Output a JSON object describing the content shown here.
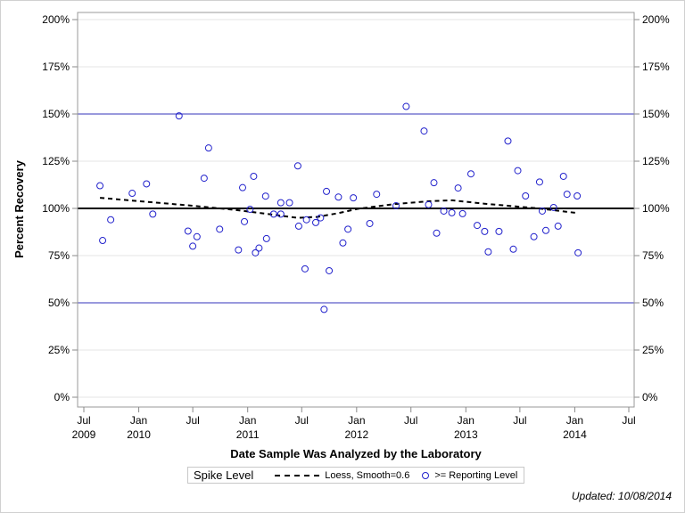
{
  "chart_data": {
    "type": "scatter",
    "xlabel": "Date Sample Was Analyzed by the Laboratory",
    "ylabel": "Percent Recovery",
    "xlim": [
      "2009-06-01",
      "2014-08-01"
    ],
    "ylim": [
      0,
      200
    ],
    "grid": true,
    "x_ticks": [
      {
        "date": "2009-07-01",
        "label": "Jul",
        "year": "2009"
      },
      {
        "date": "2010-01-01",
        "label": "Jan",
        "year": "2010"
      },
      {
        "date": "2010-07-01",
        "label": "Jul",
        "year": ""
      },
      {
        "date": "2011-01-01",
        "label": "Jan",
        "year": "2011"
      },
      {
        "date": "2011-07-01",
        "label": "Jul",
        "year": ""
      },
      {
        "date": "2012-01-01",
        "label": "Jan",
        "year": "2012"
      },
      {
        "date": "2012-07-01",
        "label": "Jul",
        "year": ""
      },
      {
        "date": "2013-01-01",
        "label": "Jan",
        "year": "2013"
      },
      {
        "date": "2013-07-01",
        "label": "Jul",
        "year": ""
      },
      {
        "date": "2014-01-01",
        "label": "Jan",
        "year": "2014"
      },
      {
        "date": "2014-07-01",
        "label": "Jul",
        "year": ""
      }
    ],
    "y_ticks": [
      {
        "value": 0,
        "label": "0%"
      },
      {
        "value": 25,
        "label": "25%"
      },
      {
        "value": 50,
        "label": "50%"
      },
      {
        "value": 75,
        "label": "75%"
      },
      {
        "value": 100,
        "label": "100%"
      },
      {
        "value": 125,
        "label": "125%"
      },
      {
        "value": 150,
        "label": "150%"
      },
      {
        "value": 175,
        "label": "175%"
      },
      {
        "value": 200,
        "label": "200%"
      }
    ],
    "reference_lines": [
      {
        "value": 100,
        "color": "#000000",
        "role": "spike level"
      },
      {
        "value": 50,
        "color": "#3333bb"
      },
      {
        "value": 150,
        "color": "#3333bb"
      }
    ],
    "legend_position": "bottom",
    "legend": {
      "title": "Spike Level",
      "loess_label": "Loess, Smooth=0.6",
      "points_label": ">= Reporting Level"
    },
    "point_color": "#2222cc",
    "points": [
      [
        "2009-08-24",
        112
      ],
      [
        "2009-09-02",
        83
      ],
      [
        "2009-09-29",
        94
      ],
      [
        "2009-12-10",
        108
      ],
      [
        "2010-01-27",
        113
      ],
      [
        "2010-02-17",
        97
      ],
      [
        "2010-05-16",
        149
      ],
      [
        "2010-06-15",
        88
      ],
      [
        "2010-07-01",
        80
      ],
      [
        "2010-07-15",
        85
      ],
      [
        "2010-08-08",
        116
      ],
      [
        "2010-08-23",
        132
      ],
      [
        "2010-09-29",
        89
      ],
      [
        "2010-12-01",
        78
      ],
      [
        "2010-12-15",
        111
      ],
      [
        "2010-12-21",
        93
      ],
      [
        "2011-01-09",
        99.5
      ],
      [
        "2011-01-21",
        117
      ],
      [
        "2011-01-27",
        76.5
      ],
      [
        "2011-02-08",
        79
      ],
      [
        "2011-03-02",
        106.5
      ],
      [
        "2011-03-05",
        84
      ],
      [
        "2011-03-29",
        97
      ],
      [
        "2011-04-22",
        97
      ],
      [
        "2011-04-22",
        103
      ],
      [
        "2011-05-21",
        103
      ],
      [
        "2011-06-18",
        122.5
      ],
      [
        "2011-06-21",
        90.6
      ],
      [
        "2011-07-12",
        68
      ],
      [
        "2011-07-17",
        94
      ],
      [
        "2011-08-17",
        92.5
      ],
      [
        "2011-09-02",
        95
      ],
      [
        "2011-09-14",
        46.5
      ],
      [
        "2011-09-22",
        109
      ],
      [
        "2011-10-01",
        67
      ],
      [
        "2011-11-01",
        106
      ],
      [
        "2011-11-16",
        81.7
      ],
      [
        "2011-12-03",
        89
      ],
      [
        "2011-12-21",
        105.6
      ],
      [
        "2012-02-14",
        92
      ],
      [
        "2012-03-08",
        107.5
      ],
      [
        "2012-05-12",
        101.4
      ],
      [
        "2012-06-15",
        154
      ],
      [
        "2012-08-14",
        141
      ],
      [
        "2012-08-29",
        102
      ],
      [
        "2012-09-16",
        113.6
      ],
      [
        "2012-09-25",
        86.9
      ],
      [
        "2012-10-19",
        98.6
      ],
      [
        "2012-11-15",
        97.7
      ],
      [
        "2012-12-06",
        110.8
      ],
      [
        "2012-12-21",
        97.2
      ],
      [
        "2013-01-18",
        118.3
      ],
      [
        "2013-02-08",
        91
      ],
      [
        "2013-03-05",
        87.8
      ],
      [
        "2013-03-17",
        77
      ],
      [
        "2013-04-22",
        87.8
      ],
      [
        "2013-05-22",
        135.7
      ],
      [
        "2013-06-09",
        78.4
      ],
      [
        "2013-06-24",
        120
      ],
      [
        "2013-07-20",
        106.6
      ],
      [
        "2013-08-17",
        85
      ],
      [
        "2013-09-05",
        114
      ],
      [
        "2013-09-14",
        98.6
      ],
      [
        "2013-09-26",
        88.3
      ],
      [
        "2013-10-22",
        100.5
      ],
      [
        "2013-11-06",
        90.6
      ],
      [
        "2013-11-24",
        117
      ],
      [
        "2013-12-06",
        107.5
      ],
      [
        "2014-01-09",
        106.6
      ],
      [
        "2014-01-12",
        76.5
      ]
    ],
    "loess": [
      [
        "2009-08-24",
        105.6
      ],
      [
        "2010-01-27",
        103.5
      ],
      [
        "2010-07-01",
        101.4
      ],
      [
        "2010-12-01",
        99
      ],
      [
        "2011-03-12",
        97
      ],
      [
        "2011-06-18",
        95
      ],
      [
        "2011-08-23",
        95.5
      ],
      [
        "2011-11-01",
        97.5
      ],
      [
        "2012-01-06",
        99.8
      ],
      [
        "2012-05-03",
        102.2
      ],
      [
        "2012-09-01",
        103.8
      ],
      [
        "2012-11-15",
        104.3
      ],
      [
        "2013-03-04",
        102.5
      ],
      [
        "2013-09-02",
        100
      ],
      [
        "2014-01-12",
        97.5
      ]
    ]
  },
  "footer": {
    "updated": "Updated: 10/08/2014"
  }
}
